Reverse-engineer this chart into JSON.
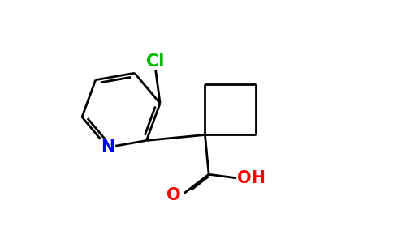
{
  "background_color": "#ffffff",
  "bond_color": "#000000",
  "N_color": "#0000ff",
  "O_color": "#ff0000",
  "Cl_color": "#00bb00",
  "line_width": 2.0,
  "figsize": [
    4.84,
    3.0
  ],
  "dpi": 100,
  "xlim": [
    0,
    10
  ],
  "ylim": [
    0,
    6
  ]
}
